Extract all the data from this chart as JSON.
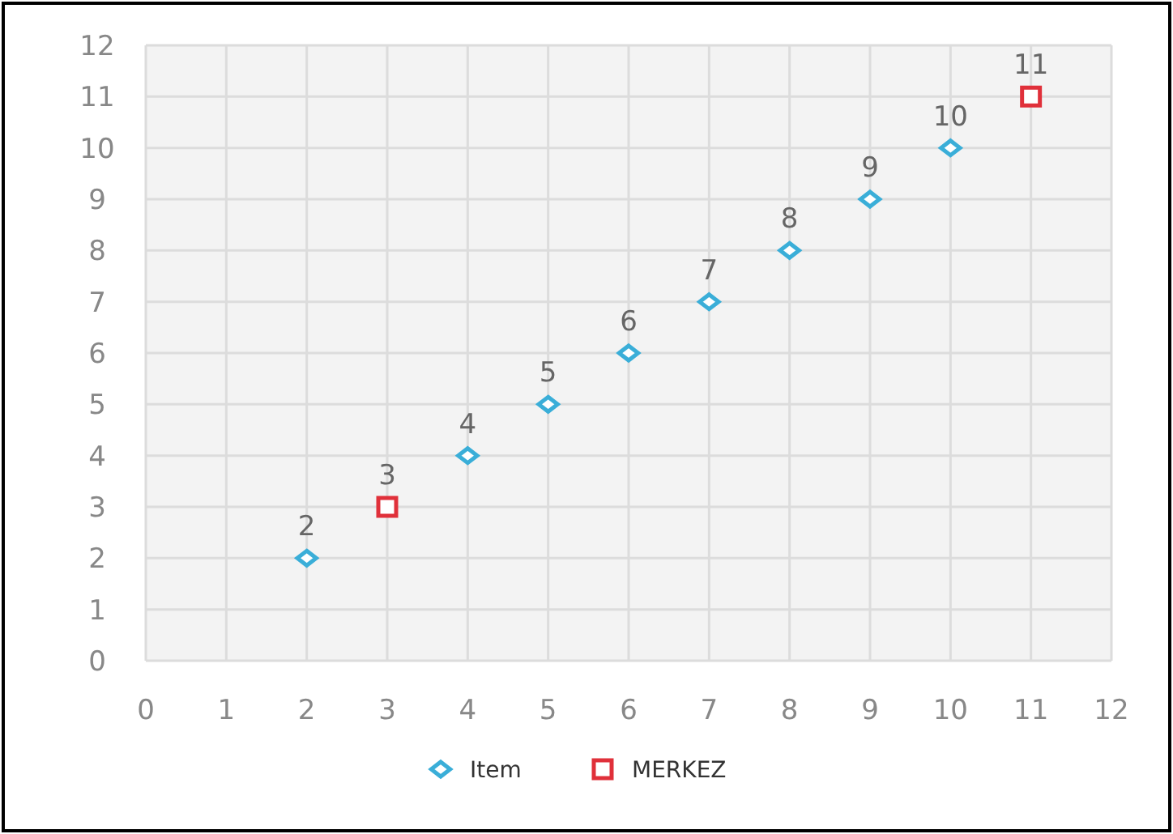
{
  "chart_data": {
    "type": "scatter",
    "xlim": [
      0,
      12
    ],
    "ylim": [
      0,
      12
    ],
    "xticks": [
      0,
      1,
      2,
      3,
      4,
      5,
      6,
      7,
      8,
      9,
      10,
      11,
      12
    ],
    "yticks": [
      0,
      1,
      2,
      3,
      4,
      5,
      6,
      7,
      8,
      9,
      10,
      11,
      12
    ],
    "grid": true,
    "legend": "bottom",
    "data_labels": true,
    "series": [
      {
        "name": "Item",
        "color": "#3aaed8",
        "marker": "diamond",
        "x": [
          2,
          4,
          5,
          6,
          7,
          8,
          9,
          10
        ],
        "values": [
          2,
          4,
          5,
          6,
          7,
          8,
          9,
          10
        ]
      },
      {
        "name": "MERKEZ",
        "color": "#e0303a",
        "marker": "square",
        "x": [
          3,
          11
        ],
        "values": [
          3,
          11
        ]
      }
    ]
  }
}
